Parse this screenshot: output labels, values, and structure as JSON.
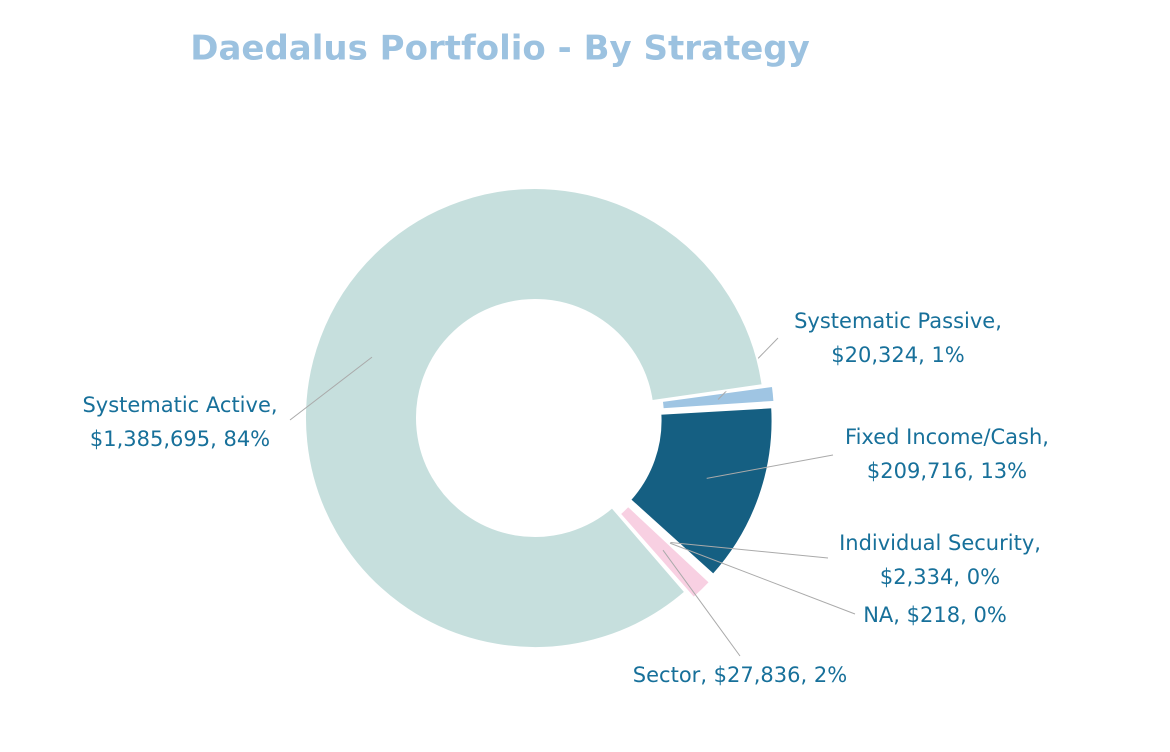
{
  "chart_data": {
    "type": "donut",
    "title": "Daedalus  Portfolio - By Strategy",
    "categories": [
      "Systematic Passive",
      "Fixed Income/Cash",
      "Individual Security",
      "NA",
      "Sector",
      "Systematic Active"
    ],
    "values": [
      20324,
      209716,
      2334,
      218,
      27836,
      1385695
    ],
    "value_labels": [
      "$20,324",
      "$209,716",
      "$2,334",
      "$218",
      "$27,836",
      "$1,385,695"
    ],
    "percents": [
      1,
      13,
      0,
      0,
      2,
      84
    ],
    "percent_labels": [
      "1%",
      "13%",
      "0%",
      "0%",
      "2%",
      "84%"
    ],
    "label_separator": ", ",
    "colors": [
      "#9fc5e3",
      "#155f82",
      "#2a7a9c",
      "#6aa0b8",
      "#f8d0e2",
      "#c6dfdd"
    ]
  }
}
